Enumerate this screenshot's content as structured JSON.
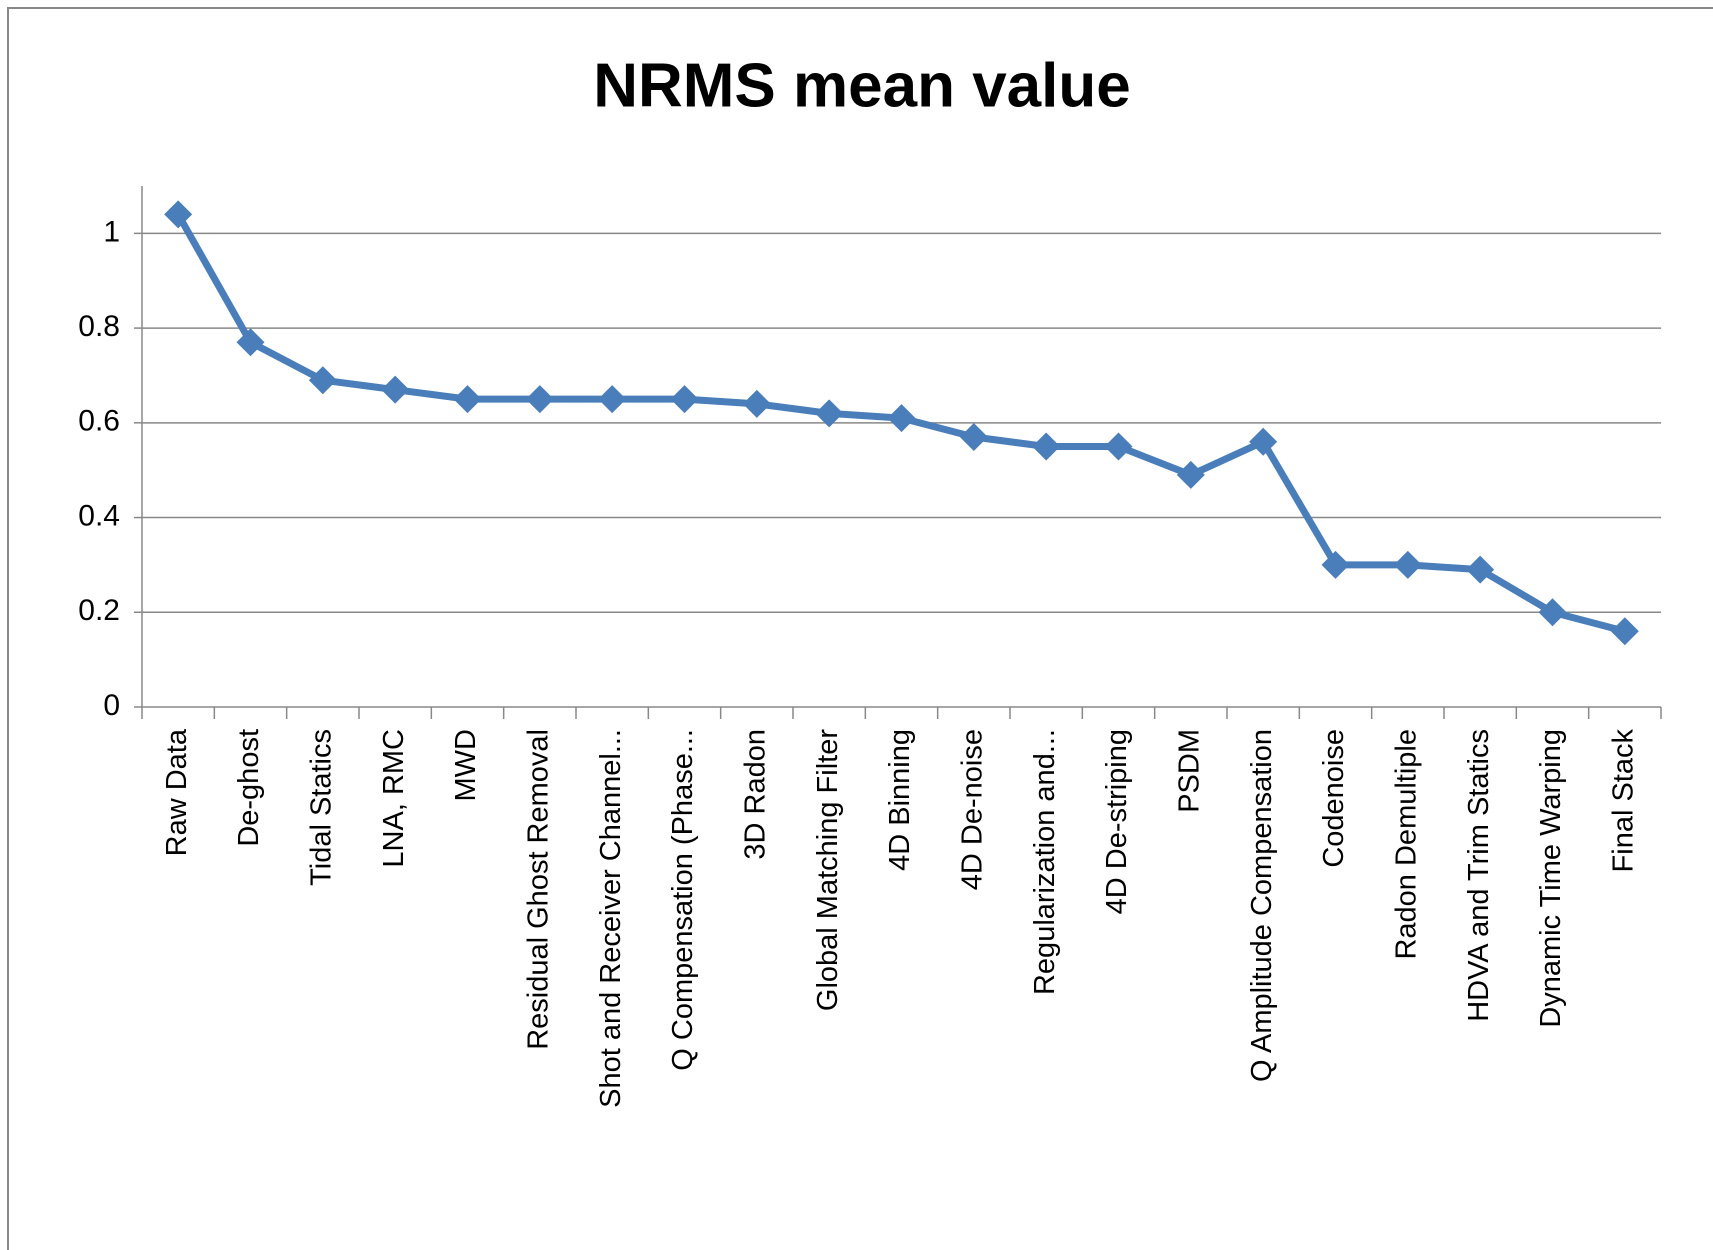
{
  "chart_data": {
    "type": "line",
    "title": "NRMS mean value",
    "categories": [
      "Raw Data",
      "De-ghost",
      "Tidal Statics",
      "LNA, RMC",
      "MWD",
      "Residual Ghost Removal",
      "Shot and Receiver Channel...",
      "Q Compensation (Phase...",
      "3D Radon",
      "Global Matching Filter",
      "4D Binning",
      "4D De-noise",
      "Regularization and...",
      "4D De-striping",
      "PSDM",
      "Q Amplitude Compensation",
      "Codenoise",
      "Radon Demultiple",
      "HDVA and Trim Statics",
      "Dynamic Time Warping",
      "Final Stack"
    ],
    "series": [
      {
        "name": "NRMS mean value",
        "color": "#4a7ebb",
        "values": [
          1.04,
          0.77,
          0.69,
          0.67,
          0.65,
          0.65,
          0.65,
          0.65,
          0.64,
          0.62,
          0.61,
          0.57,
          0.55,
          0.55,
          0.49,
          0.56,
          0.3,
          0.3,
          0.29,
          0.2,
          0.16
        ]
      }
    ],
    "ylim": [
      0,
      1.1
    ],
    "yticks": [
      0,
      0.2,
      0.4,
      0.6,
      0.8,
      1
    ],
    "grid": true
  }
}
